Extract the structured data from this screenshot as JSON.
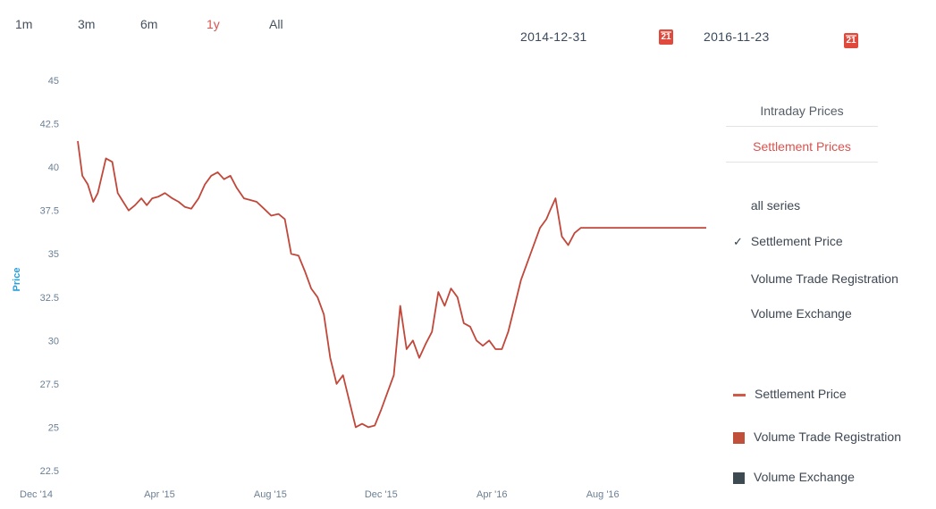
{
  "range_selector": {
    "buttons": [
      {
        "label": "1m"
      },
      {
        "label": "3m"
      },
      {
        "label": "6m"
      },
      {
        "label": "1y"
      },
      {
        "label": "All"
      }
    ],
    "active": "1y"
  },
  "date_range": {
    "from": "2014-12-31",
    "to": "2016-11-23",
    "calendar_icon_text": "21"
  },
  "tabs": {
    "intraday": "Intraday Prices",
    "settlement": "Settlement Prices",
    "active": "Settlement Prices"
  },
  "series_options": [
    {
      "label": "all series",
      "checked": false
    },
    {
      "label": "Settlement Price",
      "checked": true
    },
    {
      "label": "Volume Trade Registration",
      "checked": false
    },
    {
      "label": "Volume Exchange",
      "checked": false
    }
  ],
  "checkmark_glyph": "✓",
  "legend": [
    {
      "label": "Settlement Price",
      "symbol": "line",
      "color": "#d05a48"
    },
    {
      "label": "Volume Trade Registration",
      "symbol": "square",
      "color": "#c0503a"
    },
    {
      "label": "Volume Exchange",
      "symbol": "square",
      "color": "#3d4a52"
    }
  ],
  "colors": {
    "accent": "#d9534f",
    "series_line": "#c1473a",
    "axis_title": "#2a9fd8",
    "tick_label": "#6a7f95"
  },
  "chart_data": {
    "type": "line",
    "ylabel": "Price",
    "ylim": [
      22.5,
      45
    ],
    "yticks": [
      "45",
      "42.5",
      "40",
      "37.5",
      "35",
      "32.5",
      "30",
      "27.5",
      "25",
      "22.5"
    ],
    "xlim": [
      "2014-12-31",
      "2016-11-23"
    ],
    "xticks": [
      {
        "label": "Dec '14",
        "date": "2014-12-31"
      },
      {
        "label": "Apr '15",
        "date": "2015-04-01"
      },
      {
        "label": "Aug '15",
        "date": "2015-08-01"
      },
      {
        "label": "Dec '15",
        "date": "2015-12-01"
      },
      {
        "label": "Apr '16",
        "date": "2016-04-01"
      },
      {
        "label": "Aug '16",
        "date": "2016-08-01"
      }
    ],
    "series": [
      {
        "name": "Settlement Price",
        "x": [
          "2015-01-01",
          "2015-01-06",
          "2015-01-12",
          "2015-01-18",
          "2015-01-23",
          "2015-02-01",
          "2015-02-08",
          "2015-02-14",
          "2015-02-20",
          "2015-02-26",
          "2015-03-05",
          "2015-03-12",
          "2015-03-18",
          "2015-03-24",
          "2015-03-31",
          "2015-04-07",
          "2015-04-15",
          "2015-04-22",
          "2015-04-29",
          "2015-05-06",
          "2015-05-14",
          "2015-05-21",
          "2015-05-28",
          "2015-06-04",
          "2015-06-11",
          "2015-06-18",
          "2015-06-25",
          "2015-07-03",
          "2015-07-10",
          "2015-07-17",
          "2015-07-25",
          "2015-08-02",
          "2015-08-10",
          "2015-08-17",
          "2015-08-24",
          "2015-09-01",
          "2015-09-08",
          "2015-09-15",
          "2015-09-22",
          "2015-09-29",
          "2015-10-06",
          "2015-10-13",
          "2015-10-20",
          "2015-10-27",
          "2015-11-03",
          "2015-11-10",
          "2015-11-17",
          "2015-11-24",
          "2015-12-01",
          "2015-12-08",
          "2015-12-15",
          "2015-12-22",
          "2015-12-29",
          "2016-01-05",
          "2016-01-12",
          "2016-01-19",
          "2016-01-26",
          "2016-02-02",
          "2016-02-09",
          "2016-02-16",
          "2016-02-23",
          "2016-03-01",
          "2016-03-08",
          "2016-03-15",
          "2016-03-22",
          "2016-03-29",
          "2016-04-05",
          "2016-04-12",
          "2016-04-19",
          "2016-04-26",
          "2016-05-03",
          "2016-05-10",
          "2016-05-17",
          "2016-05-24",
          "2016-05-31",
          "2016-06-04",
          "2016-06-10",
          "2016-06-17",
          "2016-06-24",
          "2016-07-01",
          "2016-07-08",
          "2016-07-15",
          "2016-07-22",
          "2016-07-29",
          "2016-08-05",
          "2016-08-12",
          "2016-08-19",
          "2016-08-26",
          "2016-09-02",
          "2016-09-09",
          "2016-09-16",
          "2016-09-23",
          "2016-09-30",
          "2016-10-07",
          "2016-10-14",
          "2016-10-21",
          "2016-10-28",
          "2016-11-04",
          "2016-11-11",
          "2016-11-18",
          "2016-11-23"
        ],
        "values": [
          41.5,
          39.5,
          39.0,
          38.0,
          38.5,
          40.5,
          40.3,
          38.5,
          38.0,
          37.5,
          37.8,
          38.2,
          37.8,
          38.2,
          38.3,
          38.5,
          38.2,
          38.0,
          37.7,
          37.6,
          38.2,
          39.0,
          39.5,
          39.7,
          39.3,
          39.5,
          38.8,
          38.2,
          38.1,
          38.0,
          37.6,
          37.2,
          37.3,
          37.0,
          35.0,
          34.9,
          34.0,
          33.0,
          32.5,
          31.5,
          29.0,
          27.5,
          28.0,
          26.5,
          25.0,
          25.2,
          25.0,
          25.1,
          26.0,
          27.0,
          28.0,
          32.0,
          29.5,
          30.0,
          29.0,
          29.8,
          30.5,
          32.8,
          32.0,
          33.0,
          32.5,
          31.0,
          30.8,
          30.0,
          29.7,
          30.0,
          29.5,
          29.5,
          30.5,
          32.0,
          33.5,
          34.5,
          35.5,
          36.5,
          37.0,
          37.5,
          38.2,
          36.0,
          35.5,
          36.2,
          36.5,
          36.5,
          36.5,
          36.5,
          36.5,
          36.5,
          36.5,
          36.5,
          36.5,
          36.5,
          36.5,
          36.5,
          36.5,
          36.5,
          36.5,
          36.5,
          36.5,
          36.5,
          36.5,
          36.5,
          36.5
        ]
      }
    ],
    "grid": false,
    "legend_position": "right"
  }
}
